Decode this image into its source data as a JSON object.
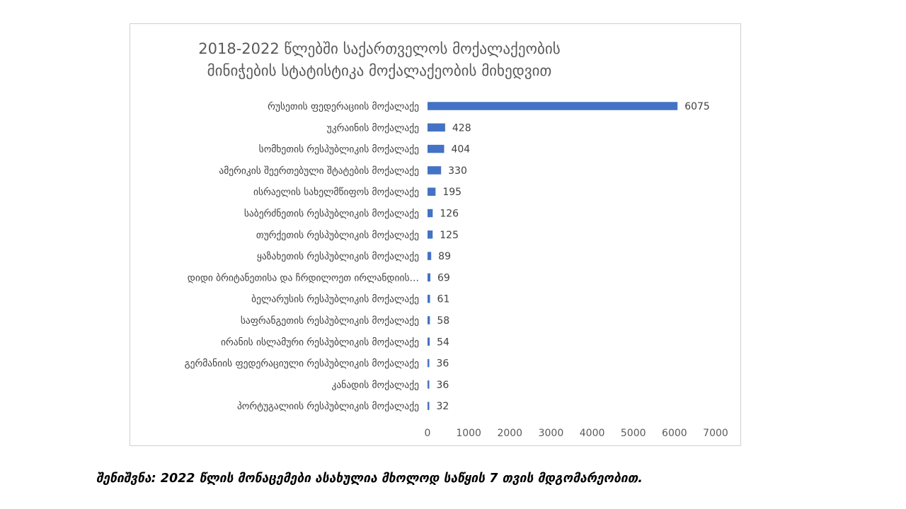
{
  "chart_data": {
    "type": "bar",
    "orientation": "horizontal",
    "title": [
      "2018-2022 წლებში საქართველოს მოქალაქეობის",
      "მინიჭების სტატისტიკა მოქალაქეობის მიხედვით"
    ],
    "categories": [
      "რუსეთის ფედერაციის მოქალაქე",
      "უკრაინის მოქალაქე",
      "სომხეთის რესპუბლიკის მოქალაქე",
      "ამერიკის შეერთებული შტატების მოქალაქე",
      "ისრაელის სახელმწიფოს მოქალაქე",
      "საბერძნეთის რესპუბლიკის მოქალაქე",
      "თურქეთის რესპუბლიკის მოქალაქე",
      "ყაზახეთის რესპუბლიკის მოქალაქე",
      "დიდი ბრიტანეთისა და ჩრდილოეთ ირლანდიის…",
      "ბელარუსის რესპუბლიკის მოქალაქე",
      "საფრანგეთის რესპუბლიკის მოქალაქე",
      "ირანის ისლამური რესპუბლიკის მოქალაქე",
      "გერმანიის ფედერაციული რესპუბლიკის მოქალაქე",
      "კანადის მოქალაქე",
      "პორტუგალიის რესპუბლიკის მოქალაქე"
    ],
    "values": [
      6075,
      428,
      404,
      330,
      195,
      126,
      125,
      89,
      69,
      61,
      58,
      54,
      36,
      36,
      32
    ],
    "xlim": [
      0,
      7000
    ],
    "xticks": [
      0,
      1000,
      2000,
      3000,
      4000,
      5000,
      6000,
      7000
    ],
    "bar_color": "#4472c4",
    "data_labels": true,
    "grid": false,
    "legend": "none"
  },
  "footnote": "შენიშვნა: 2022 წლის მონაცემები ასახულია მხოლოდ საწყის 7 თვის მდგომარეობით."
}
